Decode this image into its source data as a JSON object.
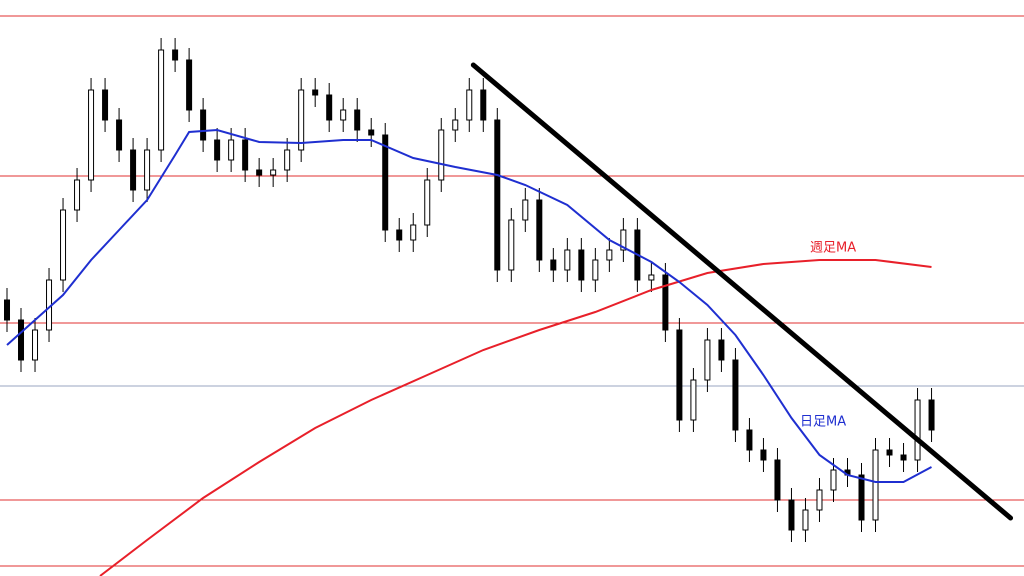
{
  "chart_data": {
    "type": "candlestick",
    "xlim": [
      -0.5,
      72.6
    ],
    "ylim": [
      0,
      576
    ],
    "up_color": "#ffffff",
    "down_color": "#000000",
    "edge_color": "#000000",
    "open": [
      276,
      256,
      216,
      246,
      296,
      366,
      396,
      486,
      456,
      426,
      386,
      426,
      526,
      516,
      466,
      436,
      416,
      436,
      406,
      401,
      406,
      426,
      486,
      481,
      456,
      466,
      446,
      441,
      346,
      336,
      351,
      396,
      446,
      456,
      486,
      456,
      306,
      356,
      376,
      316,
      306,
      326,
      296,
      316,
      326,
      346,
      296,
      301,
      246,
      156,
      196,
      236,
      216,
      146,
      126,
      116,
      76,
      46,
      66,
      86,
      106,
      101,
      56,
      126,
      121,
      116,
      176
    ],
    "high": [
      288,
      268,
      258,
      308,
      378,
      408,
      498,
      498,
      468,
      438,
      438,
      538,
      538,
      528,
      478,
      448,
      448,
      448,
      418,
      418,
      438,
      498,
      498,
      493,
      478,
      478,
      458,
      453,
      358,
      363,
      408,
      458,
      468,
      498,
      498,
      468,
      368,
      388,
      388,
      328,
      338,
      338,
      328,
      338,
      358,
      358,
      313,
      313,
      258,
      208,
      248,
      248,
      228,
      158,
      138,
      128,
      88,
      78,
      98,
      118,
      118,
      113,
      138,
      138,
      133,
      188,
      188
    ],
    "low": [
      244,
      204,
      204,
      234,
      284,
      354,
      384,
      444,
      414,
      374,
      374,
      414,
      504,
      454,
      424,
      404,
      404,
      394,
      389,
      389,
      394,
      414,
      469,
      444,
      444,
      434,
      429,
      334,
      324,
      324,
      339,
      384,
      434,
      444,
      444,
      294,
      294,
      344,
      304,
      294,
      294,
      284,
      284,
      304,
      314,
      284,
      284,
      234,
      144,
      144,
      184,
      204,
      134,
      114,
      104,
      64,
      34,
      34,
      54,
      74,
      89,
      44,
      44,
      109,
      104,
      104,
      134
    ],
    "close": [
      256,
      216,
      246,
      296,
      366,
      396,
      486,
      456,
      426,
      386,
      426,
      526,
      516,
      466,
      436,
      416,
      436,
      406,
      401,
      406,
      426,
      486,
      481,
      456,
      466,
      446,
      441,
      346,
      336,
      351,
      396,
      446,
      456,
      486,
      456,
      306,
      356,
      376,
      316,
      306,
      326,
      296,
      316,
      326,
      346,
      296,
      301,
      246,
      156,
      196,
      236,
      216,
      146,
      126,
      116,
      76,
      46,
      66,
      86,
      106,
      101,
      56,
      126,
      121,
      116,
      176,
      146
    ],
    "series": [
      {
        "name": "週足MA",
        "color": "#e8202a",
        "x": [
          6.64,
          10,
          14,
          18,
          22,
          26,
          30,
          34,
          38,
          42,
          46,
          50,
          54,
          58,
          62,
          66
        ],
        "values": [
          0,
          36,
          78,
          114,
          148,
          176,
          201,
          226,
          246,
          264,
          286,
          303,
          312,
          316,
          316,
          309
        ]
      },
      {
        "name": "日足MA",
        "color": "#1f2fd0",
        "x": [
          0,
          2,
          4,
          6,
          8,
          10,
          12,
          13,
          15,
          18,
          21,
          24,
          26,
          29,
          32,
          35,
          37,
          40,
          43,
          46,
          48,
          50,
          52,
          54,
          56,
          58,
          60,
          62,
          64,
          66
        ],
        "values": [
          231,
          256,
          281,
          316,
          346,
          376,
          421,
          444,
          446,
          434,
          433,
          436,
          436,
          418,
          409,
          401,
          391,
          371,
          336,
          314,
          294,
          271,
          241,
          201,
          158,
          121,
          101,
          94,
          94,
          109
        ]
      }
    ],
    "levels": [
      560,
      400,
      253,
      76,
      10
    ],
    "level_color": "#e03030",
    "reference_level": 190,
    "reference_color": "#9aa6c0",
    "trendline": {
      "x": [
        33.29,
        71.64
      ],
      "values": [
        511,
        58
      ],
      "color": "#000000"
    }
  }
}
